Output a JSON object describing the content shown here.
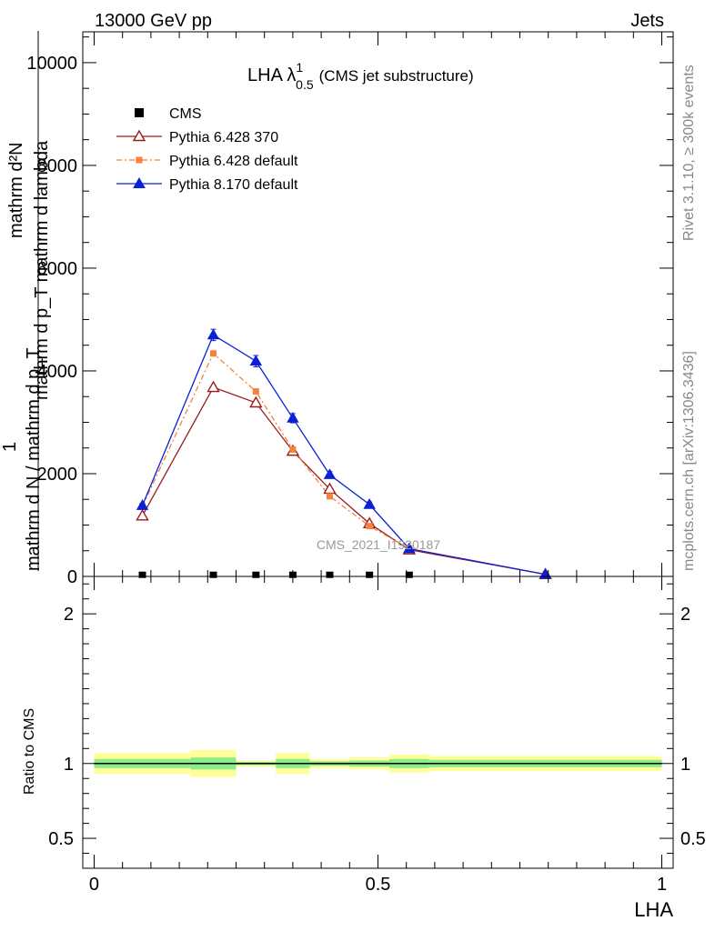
{
  "header": {
    "left": "13000 GeV pp",
    "right": "Jets"
  },
  "title": {
    "main": "LHA λ",
    "superscript": "1",
    "subscript": "0.5",
    "suffix": "(CMS jet substructure)"
  },
  "side_text": {
    "rivet": "Rivet 3.1.10, ≥ 300k events",
    "site": "mcplots.cern.ch [arXiv:1306.3436]"
  },
  "watermark": "CMS_2021_I1920187",
  "ylabel_main": {
    "numerator": "mathrm d²N",
    "numerator_line2": "mathrm d p_T mathrm d lambda",
    "one": "1",
    "denominator": "mathrm d N / mathrm d p_T"
  },
  "ylabel_ratio": "Ratio to CMS",
  "xlabel": "LHA",
  "legend": [
    {
      "key": "cms",
      "label": "CMS"
    },
    {
      "key": "py6_370",
      "label": "Pythia 6.428 370"
    },
    {
      "key": "py6_def",
      "label": "Pythia 6.428 default"
    },
    {
      "key": "py8_def",
      "label": "Pythia 8.170 default"
    }
  ],
  "colors": {
    "cms": "#000000",
    "py6_370": "#9b1b1b",
    "py6_def": "#f5813a",
    "py8_def": "#0b1fd6",
    "band_outer": "#ffff99",
    "band_inner": "#88ee88"
  },
  "chart_data": [
    {
      "type": "line",
      "panel": "main",
      "xlim": [
        -0.02,
        1.02
      ],
      "ylim": [
        0,
        10600
      ],
      "xticks": [
        0,
        0.5,
        1
      ],
      "yticks": [
        0,
        2000,
        4000,
        6000,
        8000,
        10000
      ],
      "ytick_labels": [
        "0",
        "2000",
        "4000",
        "6000",
        "8000",
        "10000"
      ],
      "series": [
        {
          "name": "CMS",
          "key": "cms",
          "x": [
            0.085,
            0.21,
            0.285,
            0.35,
            0.415,
            0.485,
            0.555
          ],
          "y": [
            5,
            5,
            5,
            5,
            5,
            5,
            5
          ]
        },
        {
          "name": "Pythia 6.428 370",
          "key": "py6_370",
          "x": [
            0.085,
            0.21,
            0.285,
            0.35,
            0.415,
            0.485,
            0.555,
            0.795
          ],
          "y": [
            1180,
            3680,
            3380,
            2440,
            1700,
            1030,
            520,
            40
          ]
        },
        {
          "name": "Pythia 6.428 default",
          "key": "py6_def",
          "x": [
            0.085,
            0.21,
            0.285,
            0.35,
            0.415,
            0.485,
            0.555,
            0.795
          ],
          "y": [
            1360,
            4340,
            3600,
            2470,
            1560,
            980,
            540,
            40
          ]
        },
        {
          "name": "Pythia 8.170 default",
          "key": "py8_def",
          "x": [
            0.085,
            0.21,
            0.285,
            0.35,
            0.415,
            0.485,
            0.555,
            0.795
          ],
          "y": [
            1380,
            4700,
            4190,
            3080,
            1980,
            1400,
            540,
            40
          ],
          "err": [
            40,
            110,
            110,
            90,
            60,
            50,
            30,
            10
          ]
        }
      ]
    },
    {
      "type": "area",
      "panel": "ratio",
      "xlim": [
        -0.02,
        1.02
      ],
      "ylim": [
        0.3,
        2.25
      ],
      "yticks": [
        0.5,
        1,
        2
      ],
      "ytick_labels": [
        "0.5",
        "1",
        "2"
      ],
      "xtick_labels": [
        "0",
        "0.5",
        "1"
      ],
      "reference": 1,
      "bins": [
        {
          "x0": 0.0,
          "x1": 0.17,
          "outer": [
            0.93,
            1.07
          ],
          "inner": [
            0.97,
            1.03
          ]
        },
        {
          "x0": 0.17,
          "x1": 0.25,
          "outer": [
            0.91,
            1.09
          ],
          "inner": [
            0.96,
            1.04
          ]
        },
        {
          "x0": 0.25,
          "x1": 0.32,
          "outer": [
            0.98,
            1.02
          ],
          "inner": [
            0.99,
            1.01
          ]
        },
        {
          "x0": 0.32,
          "x1": 0.38,
          "outer": [
            0.93,
            1.07
          ],
          "inner": [
            0.97,
            1.03
          ]
        },
        {
          "x0": 0.38,
          "x1": 0.45,
          "outer": [
            0.97,
            1.03
          ],
          "inner": [
            0.985,
            1.015
          ]
        },
        {
          "x0": 0.45,
          "x1": 0.52,
          "outer": [
            0.96,
            1.04
          ],
          "inner": [
            0.98,
            1.02
          ]
        },
        {
          "x0": 0.52,
          "x1": 0.59,
          "outer": [
            0.94,
            1.06
          ],
          "inner": [
            0.97,
            1.03
          ]
        },
        {
          "x0": 0.59,
          "x1": 1.0,
          "outer": [
            0.95,
            1.05
          ],
          "inner": [
            0.975,
            1.025
          ]
        }
      ]
    }
  ]
}
